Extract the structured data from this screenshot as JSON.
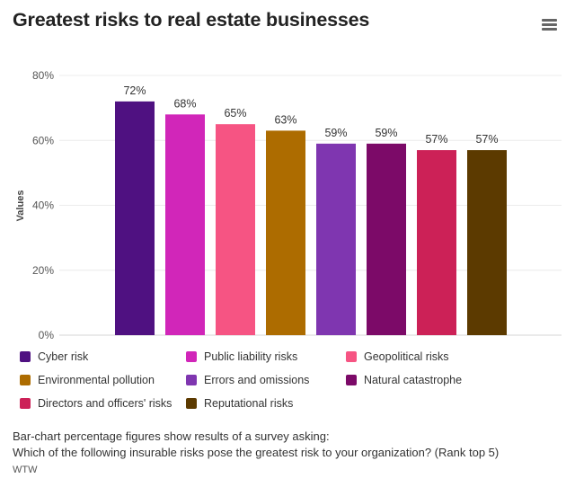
{
  "header": {
    "title": "Greatest risks to real estate businesses",
    "menu_icon": "hamburger-menu-icon"
  },
  "chart_data": {
    "type": "bar",
    "title": "Greatest risks to real estate businesses",
    "xlabel": "",
    "ylabel": "Values",
    "ylim": [
      0,
      80
    ],
    "yticks": [
      0,
      20,
      40,
      60,
      80
    ],
    "ytick_labels": [
      "0%",
      "20%",
      "40%",
      "60%",
      "80%"
    ],
    "grid": true,
    "legend_position": "bottom",
    "categories": [
      "Cyber risk",
      "Public liability risks",
      "Geopolitical risks",
      "Environmental pollution",
      "Errors and omissions",
      "Natural catastrophe",
      "Directors and officers' risks",
      "Reputational risks"
    ],
    "values": [
      72,
      68,
      65,
      63,
      59,
      59,
      57,
      57
    ],
    "data_labels": [
      "72%",
      "68%",
      "65%",
      "63%",
      "59%",
      "59%",
      "57%",
      "57%"
    ],
    "colors": [
      "#4f1181",
      "#d126b9",
      "#f65483",
      "#ad6c00",
      "#7f36b0",
      "#7c0a68",
      "#cc2157",
      "#5c3a00"
    ]
  },
  "caption": {
    "line1": "Bar-chart percentage figures show results of a survey asking:",
    "line2": "Which of the following insurable risks pose the greatest risk to your organization? (Rank top 5)",
    "source": "WTW"
  }
}
